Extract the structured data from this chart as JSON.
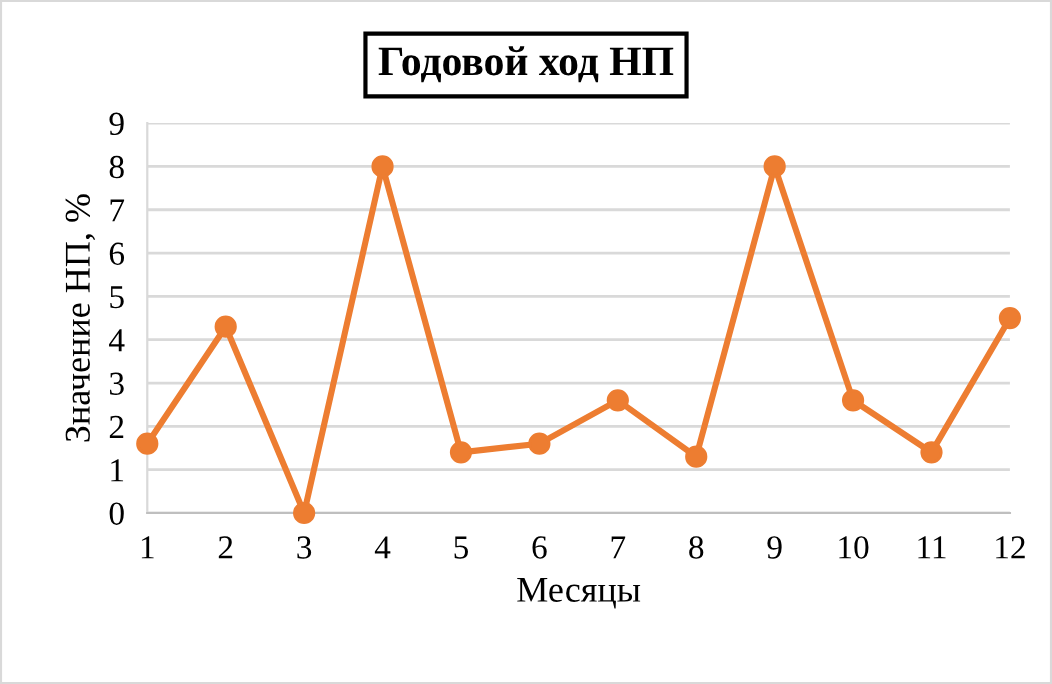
{
  "chart_data": {
    "type": "line",
    "title": "Годовой ход НП",
    "xlabel": "Месяцы",
    "ylabel": "Значение НП, %",
    "x": [
      1,
      2,
      3,
      4,
      5,
      6,
      7,
      8,
      9,
      10,
      11,
      12
    ],
    "series": [
      {
        "color": "#ed7d31",
        "values": [
          1.6,
          4.3,
          0,
          8,
          1.4,
          1.6,
          2.6,
          1.3,
          8,
          2.6,
          1.4,
          4.5
        ]
      }
    ],
    "xlim": [
      1,
      12
    ],
    "xticks": [
      1,
      2,
      3,
      4,
      5,
      6,
      7,
      8,
      9,
      10,
      11,
      12
    ],
    "ylim": [
      0,
      9
    ],
    "yticks": [
      0,
      1,
      2,
      3,
      4,
      5,
      6,
      7,
      8,
      9
    ],
    "grid": "y",
    "marker": "circle",
    "line_style": "solid"
  }
}
